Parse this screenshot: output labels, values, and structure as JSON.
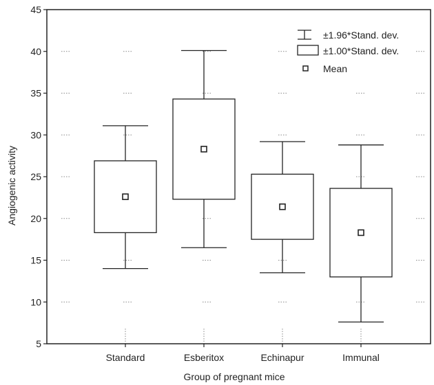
{
  "chart_data": {
    "type": "box",
    "xlabel": "Group of pregnant mice",
    "ylabel": "Angiogenic activity",
    "ylim": [
      5,
      45
    ],
    "yticks": [
      5,
      10,
      15,
      20,
      25,
      30,
      35,
      40,
      45
    ],
    "grid": "dotted",
    "legend_position": "top-right",
    "legend": {
      "whisker": "±1.96*Stand. dev.",
      "box": "±1.00*Stand. dev.",
      "mean": "Mean"
    },
    "categories": [
      "Standard",
      "Esberitox",
      "Echinapur",
      "Immunal"
    ],
    "boxes": [
      {
        "category": "Standard",
        "mean": 22.6,
        "box_low": 18.3,
        "box_high": 26.9,
        "whisker_low": 14.0,
        "whisker_high": 31.1
      },
      {
        "category": "Esberitox",
        "mean": 28.3,
        "box_low": 22.3,
        "box_high": 34.3,
        "whisker_low": 16.5,
        "whisker_high": 40.1
      },
      {
        "category": "Echinapur",
        "mean": 21.4,
        "box_low": 17.5,
        "box_high": 25.3,
        "whisker_low": 13.5,
        "whisker_high": 29.2
      },
      {
        "category": "Immunal",
        "mean": 18.3,
        "box_low": 13.0,
        "box_high": 23.6,
        "whisker_low": 7.6,
        "whisker_high": 28.8
      }
    ]
  }
}
